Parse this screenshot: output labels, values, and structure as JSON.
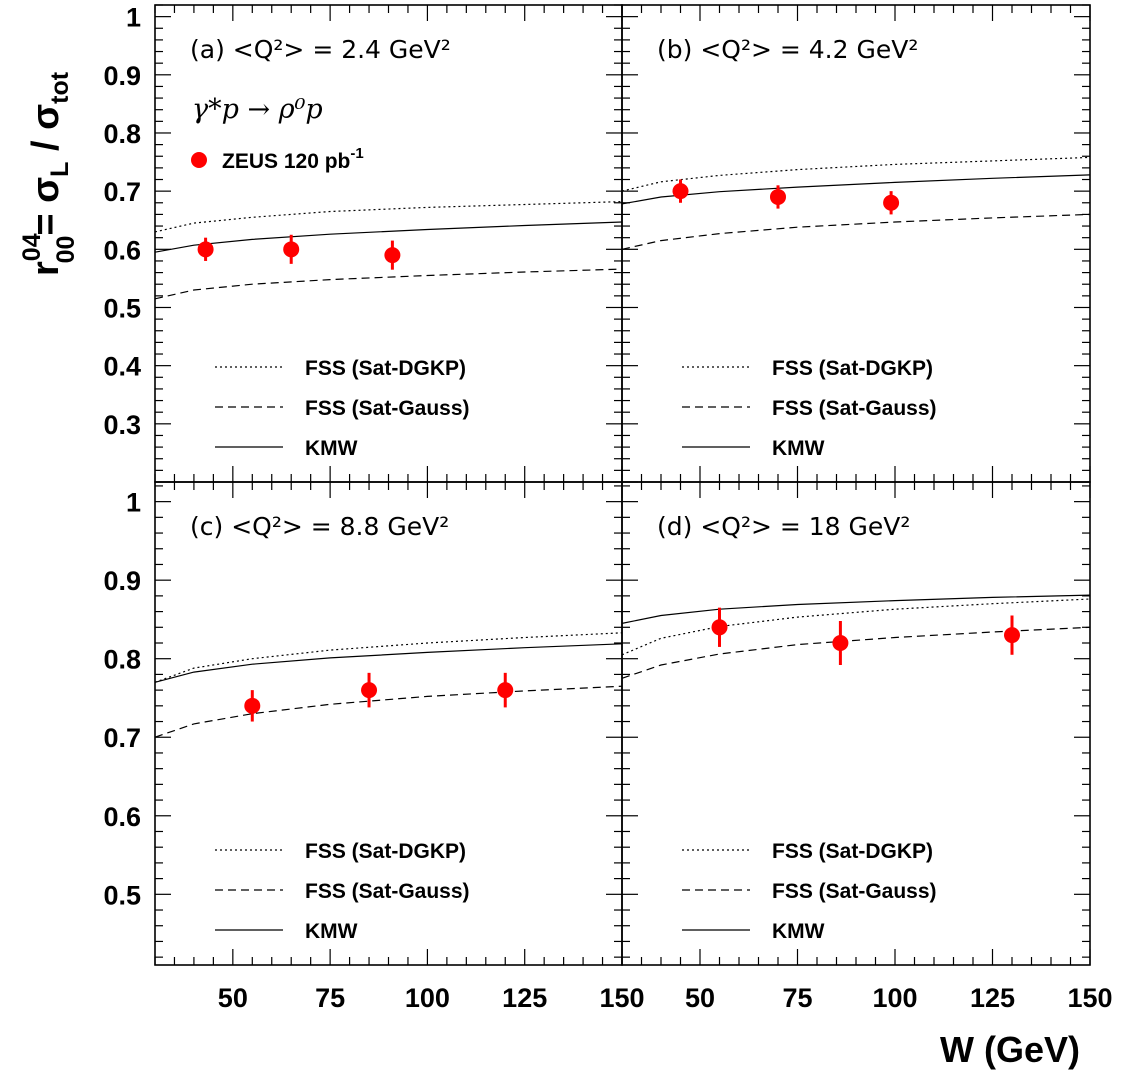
{
  "chart_data": {
    "type": "scatter",
    "x_axis": {
      "label": "W (GeV)",
      "range": [
        30,
        150
      ],
      "ticks": [
        "50",
        "75",
        "100",
        "125",
        "150"
      ]
    },
    "y_axis": {
      "label_parts": {
        "r": "r",
        "sup": "04",
        "sub": "00",
        "eq": "= σ",
        "L": "L",
        "slash": " / σ",
        "tot": "tot"
      }
    },
    "reaction": "γ*p → ρ⁰p",
    "data_legend": {
      "text": "ZEUS 120 pb",
      "sup": "-1"
    },
    "line_legend": [
      "FSS (Sat-DGKP)",
      "FSS (Sat-Gauss)",
      "KMW"
    ],
    "marker_color": "#ff0000",
    "panels": [
      {
        "id": "a",
        "label": "(a)  <Q²> = 2.4 GeV²",
        "y_range": [
          0.2,
          1.02
        ],
        "y_ticks": [
          0.3,
          0.4,
          0.5,
          0.6,
          0.7,
          0.8,
          0.9,
          1
        ],
        "y_tick_labels": [
          "0.3",
          "0.4",
          "0.5",
          "0.6",
          "0.7",
          "0.8",
          "0.9",
          "1"
        ],
        "data": [
          {
            "w": 43,
            "value": 0.6,
            "err": 0.02
          },
          {
            "w": 65,
            "value": 0.6,
            "err": 0.025
          },
          {
            "w": 91,
            "value": 0.59,
            "err": 0.025
          }
        ],
        "curves": {
          "dgkp": {
            "w": [
              30,
              40,
              55,
              75,
              100,
              125,
              150
            ],
            "value": [
              0.63,
              0.645,
              0.655,
              0.665,
              0.672,
              0.677,
              0.682
            ]
          },
          "gauss": {
            "w": [
              30,
              40,
              55,
              75,
              100,
              125,
              150
            ],
            "value": [
              0.515,
              0.53,
              0.54,
              0.548,
              0.555,
              0.561,
              0.566
            ]
          },
          "kmw": {
            "w": [
              30,
              40,
              55,
              75,
              100,
              125,
              150
            ],
            "value": [
              0.595,
              0.607,
              0.617,
              0.626,
              0.634,
              0.641,
              0.647
            ]
          }
        }
      },
      {
        "id": "b",
        "label": "(b)  <Q²> = 4.2 GeV²",
        "y_range": [
          0.2,
          1.02
        ],
        "data": [
          {
            "w": 45,
            "value": 0.7,
            "err": 0.02
          },
          {
            "w": 70,
            "value": 0.69,
            "err": 0.02
          },
          {
            "w": 99,
            "value": 0.68,
            "err": 0.02
          }
        ],
        "curves": {
          "dgkp": {
            "w": [
              30,
              40,
              55,
              75,
              100,
              125,
              150
            ],
            "value": [
              0.7,
              0.716,
              0.727,
              0.737,
              0.746,
              0.752,
              0.758
            ]
          },
          "gauss": {
            "w": [
              30,
              40,
              55,
              75,
              100,
              125,
              150
            ],
            "value": [
              0.6,
              0.615,
              0.627,
              0.638,
              0.647,
              0.654,
              0.66
            ]
          },
          "kmw": {
            "w": [
              30,
              40,
              55,
              75,
              100,
              125,
              150
            ],
            "value": [
              0.678,
              0.69,
              0.699,
              0.707,
              0.715,
              0.722,
              0.728
            ]
          }
        }
      },
      {
        "id": "c",
        "label": "(c)  <Q²> = 8.8 GeV²",
        "y_range": [
          0.41,
          1.025
        ],
        "y_ticks": [
          0.5,
          0.6,
          0.7,
          0.8,
          0.9,
          1
        ],
        "y_tick_labels": [
          "0.5",
          "0.6",
          "0.7",
          "0.8",
          "0.9",
          "1"
        ],
        "data": [
          {
            "w": 55,
            "value": 0.74,
            "err": 0.02
          },
          {
            "w": 85,
            "value": 0.76,
            "err": 0.022
          },
          {
            "w": 120,
            "value": 0.76,
            "err": 0.022
          }
        ],
        "curves": {
          "dgkp": {
            "w": [
              30,
              40,
              55,
              75,
              100,
              125,
              150
            ],
            "value": [
              0.77,
              0.788,
              0.8,
              0.811,
              0.82,
              0.827,
              0.833
            ]
          },
          "gauss": {
            "w": [
              30,
              40,
              55,
              75,
              100,
              125,
              150
            ],
            "value": [
              0.7,
              0.717,
              0.73,
              0.742,
              0.752,
              0.759,
              0.765
            ]
          },
          "kmw": {
            "w": [
              30,
              40,
              55,
              75,
              100,
              125,
              150
            ],
            "value": [
              0.77,
              0.783,
              0.793,
              0.801,
              0.808,
              0.814,
              0.819
            ]
          }
        }
      },
      {
        "id": "d",
        "label": "(d)  <Q²> = 18 GeV²",
        "y_range": [
          0.41,
          1.025
        ],
        "data": [
          {
            "w": 55,
            "value": 0.84,
            "err": 0.025
          },
          {
            "w": 86,
            "value": 0.82,
            "err": 0.028
          },
          {
            "w": 130,
            "value": 0.83,
            "err": 0.025
          }
        ],
        "curves": {
          "dgkp": {
            "w": [
              30,
              40,
              55,
              75,
              100,
              125,
              150
            ],
            "value": [
              0.805,
              0.826,
              0.841,
              0.853,
              0.863,
              0.87,
              0.876
            ]
          },
          "gauss": {
            "w": [
              30,
              40,
              55,
              75,
              100,
              125,
              150
            ],
            "value": [
              0.775,
              0.792,
              0.806,
              0.818,
              0.827,
              0.834,
              0.84
            ]
          },
          "kmw": {
            "w": [
              30,
              40,
              55,
              75,
              100,
              125,
              150
            ],
            "value": [
              0.845,
              0.855,
              0.863,
              0.869,
              0.874,
              0.878,
              0.881
            ]
          }
        }
      }
    ]
  }
}
